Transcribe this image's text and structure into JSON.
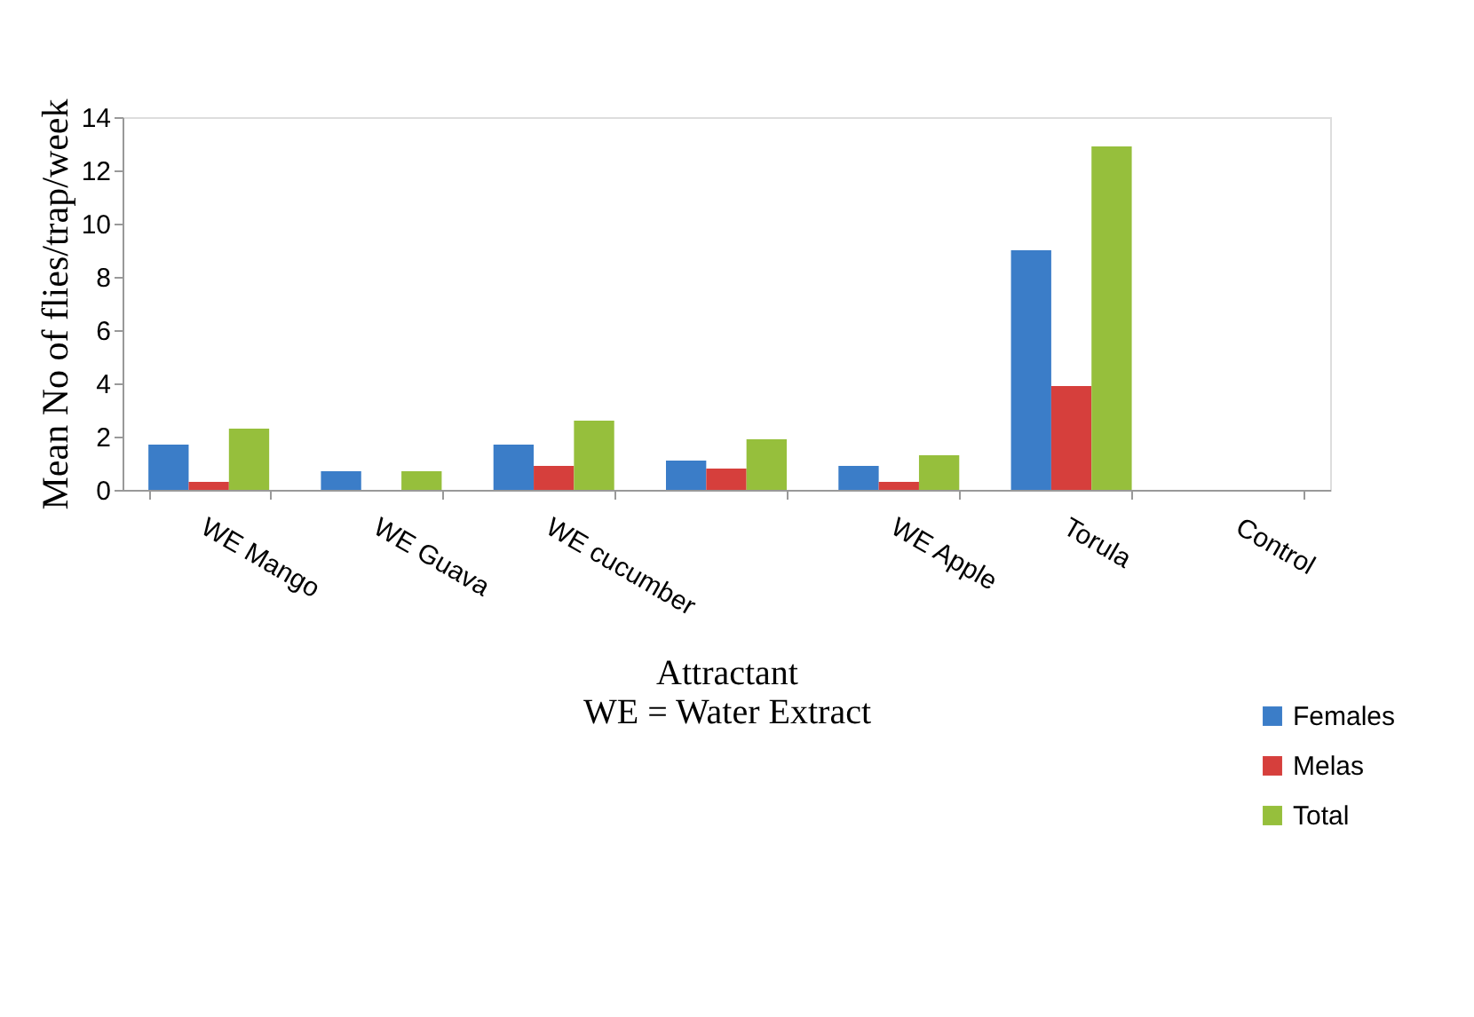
{
  "chart_data": {
    "type": "bar",
    "xlabel": "Attractant\nWE = Water Extract",
    "ylabel": "Mean No of flies/trap/week",
    "categories": [
      "WE Mango",
      "WE Guava",
      "WE cucumber",
      null,
      "WE Apple",
      "Torula",
      "Control"
    ],
    "series": [
      {
        "name": "Females",
        "color": "#3b7dc8",
        "values": [
          1.7,
          0.7,
          1.7,
          1.1,
          0.9,
          9.0,
          0
        ]
      },
      {
        "name": "Melas",
        "color": "#d63f3c",
        "values": [
          0.3,
          0,
          0.9,
          0.8,
          0.3,
          3.9,
          0
        ]
      },
      {
        "name": "Total",
        "color": "#96bf3c",
        "values": [
          2.3,
          0.7,
          2.6,
          1.9,
          1.3,
          12.9,
          0
        ]
      }
    ],
    "ylim": [
      0,
      14
    ],
    "yticks": [
      0,
      2,
      4,
      6,
      8,
      10,
      12,
      14
    ],
    "grid": false,
    "legend": "bottom right"
  }
}
